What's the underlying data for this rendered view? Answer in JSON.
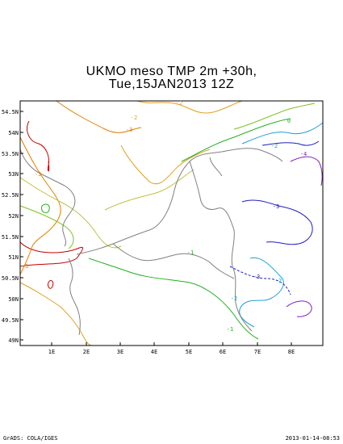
{
  "title": {
    "line1": "UKMO meso TMP 2m +30h,",
    "line2": "Tue,15JAN2013 12Z"
  },
  "axes": {
    "lat_ticks": [
      "54.5N",
      "54N",
      "53.5N",
      "53N",
      "52.5N",
      "52N",
      "51.5N",
      "51N",
      "50.5N",
      "50N",
      "49.5N",
      "49N"
    ],
    "lon_ticks": [
      "1E",
      "2E",
      "3E",
      "4E",
      "5E",
      "6E",
      "7E",
      "8E"
    ]
  },
  "contour_labels": [
    {
      "text": "-2",
      "color": "#e0a020"
    },
    {
      "text": "-3",
      "color": "#e0a020"
    },
    {
      "text": "-2",
      "color": "#e0a020"
    },
    {
      "text": "-3",
      "color": "#e08000"
    },
    {
      "text": "0",
      "color": "#20b020"
    },
    {
      "text": "-2",
      "color": "#20a0d0"
    },
    {
      "text": "-3",
      "color": "#2020c0"
    },
    {
      "text": "-2",
      "color": "#20a0d0"
    },
    {
      "text": "-3",
      "color": "#2020c0"
    },
    {
      "text": "-2",
      "color": "#20a0d0"
    },
    {
      "text": "-1",
      "color": "#20b020"
    },
    {
      "text": "-1",
      "color": "#20b020"
    },
    {
      "text": "-3",
      "color": "#e08000"
    },
    {
      "text": "-4",
      "color": "#8020c0"
    }
  ],
  "footer": {
    "left": "GrADS: COLA/IGES",
    "right": "2013-01-14-08:53"
  },
  "colors": {
    "frame": "#000000",
    "coast": "#808080",
    "c_neg4": "#8020c0",
    "c_neg3_cold": "#2020c0",
    "c_neg2_cold": "#20a0d0",
    "c_neg1": "#20b020",
    "c_0": "#80c020",
    "c_warm1": "#c0c040",
    "c_warm2": "#e0a020",
    "c_warm3": "#e08000",
    "c_warm4": "#c00000"
  }
}
